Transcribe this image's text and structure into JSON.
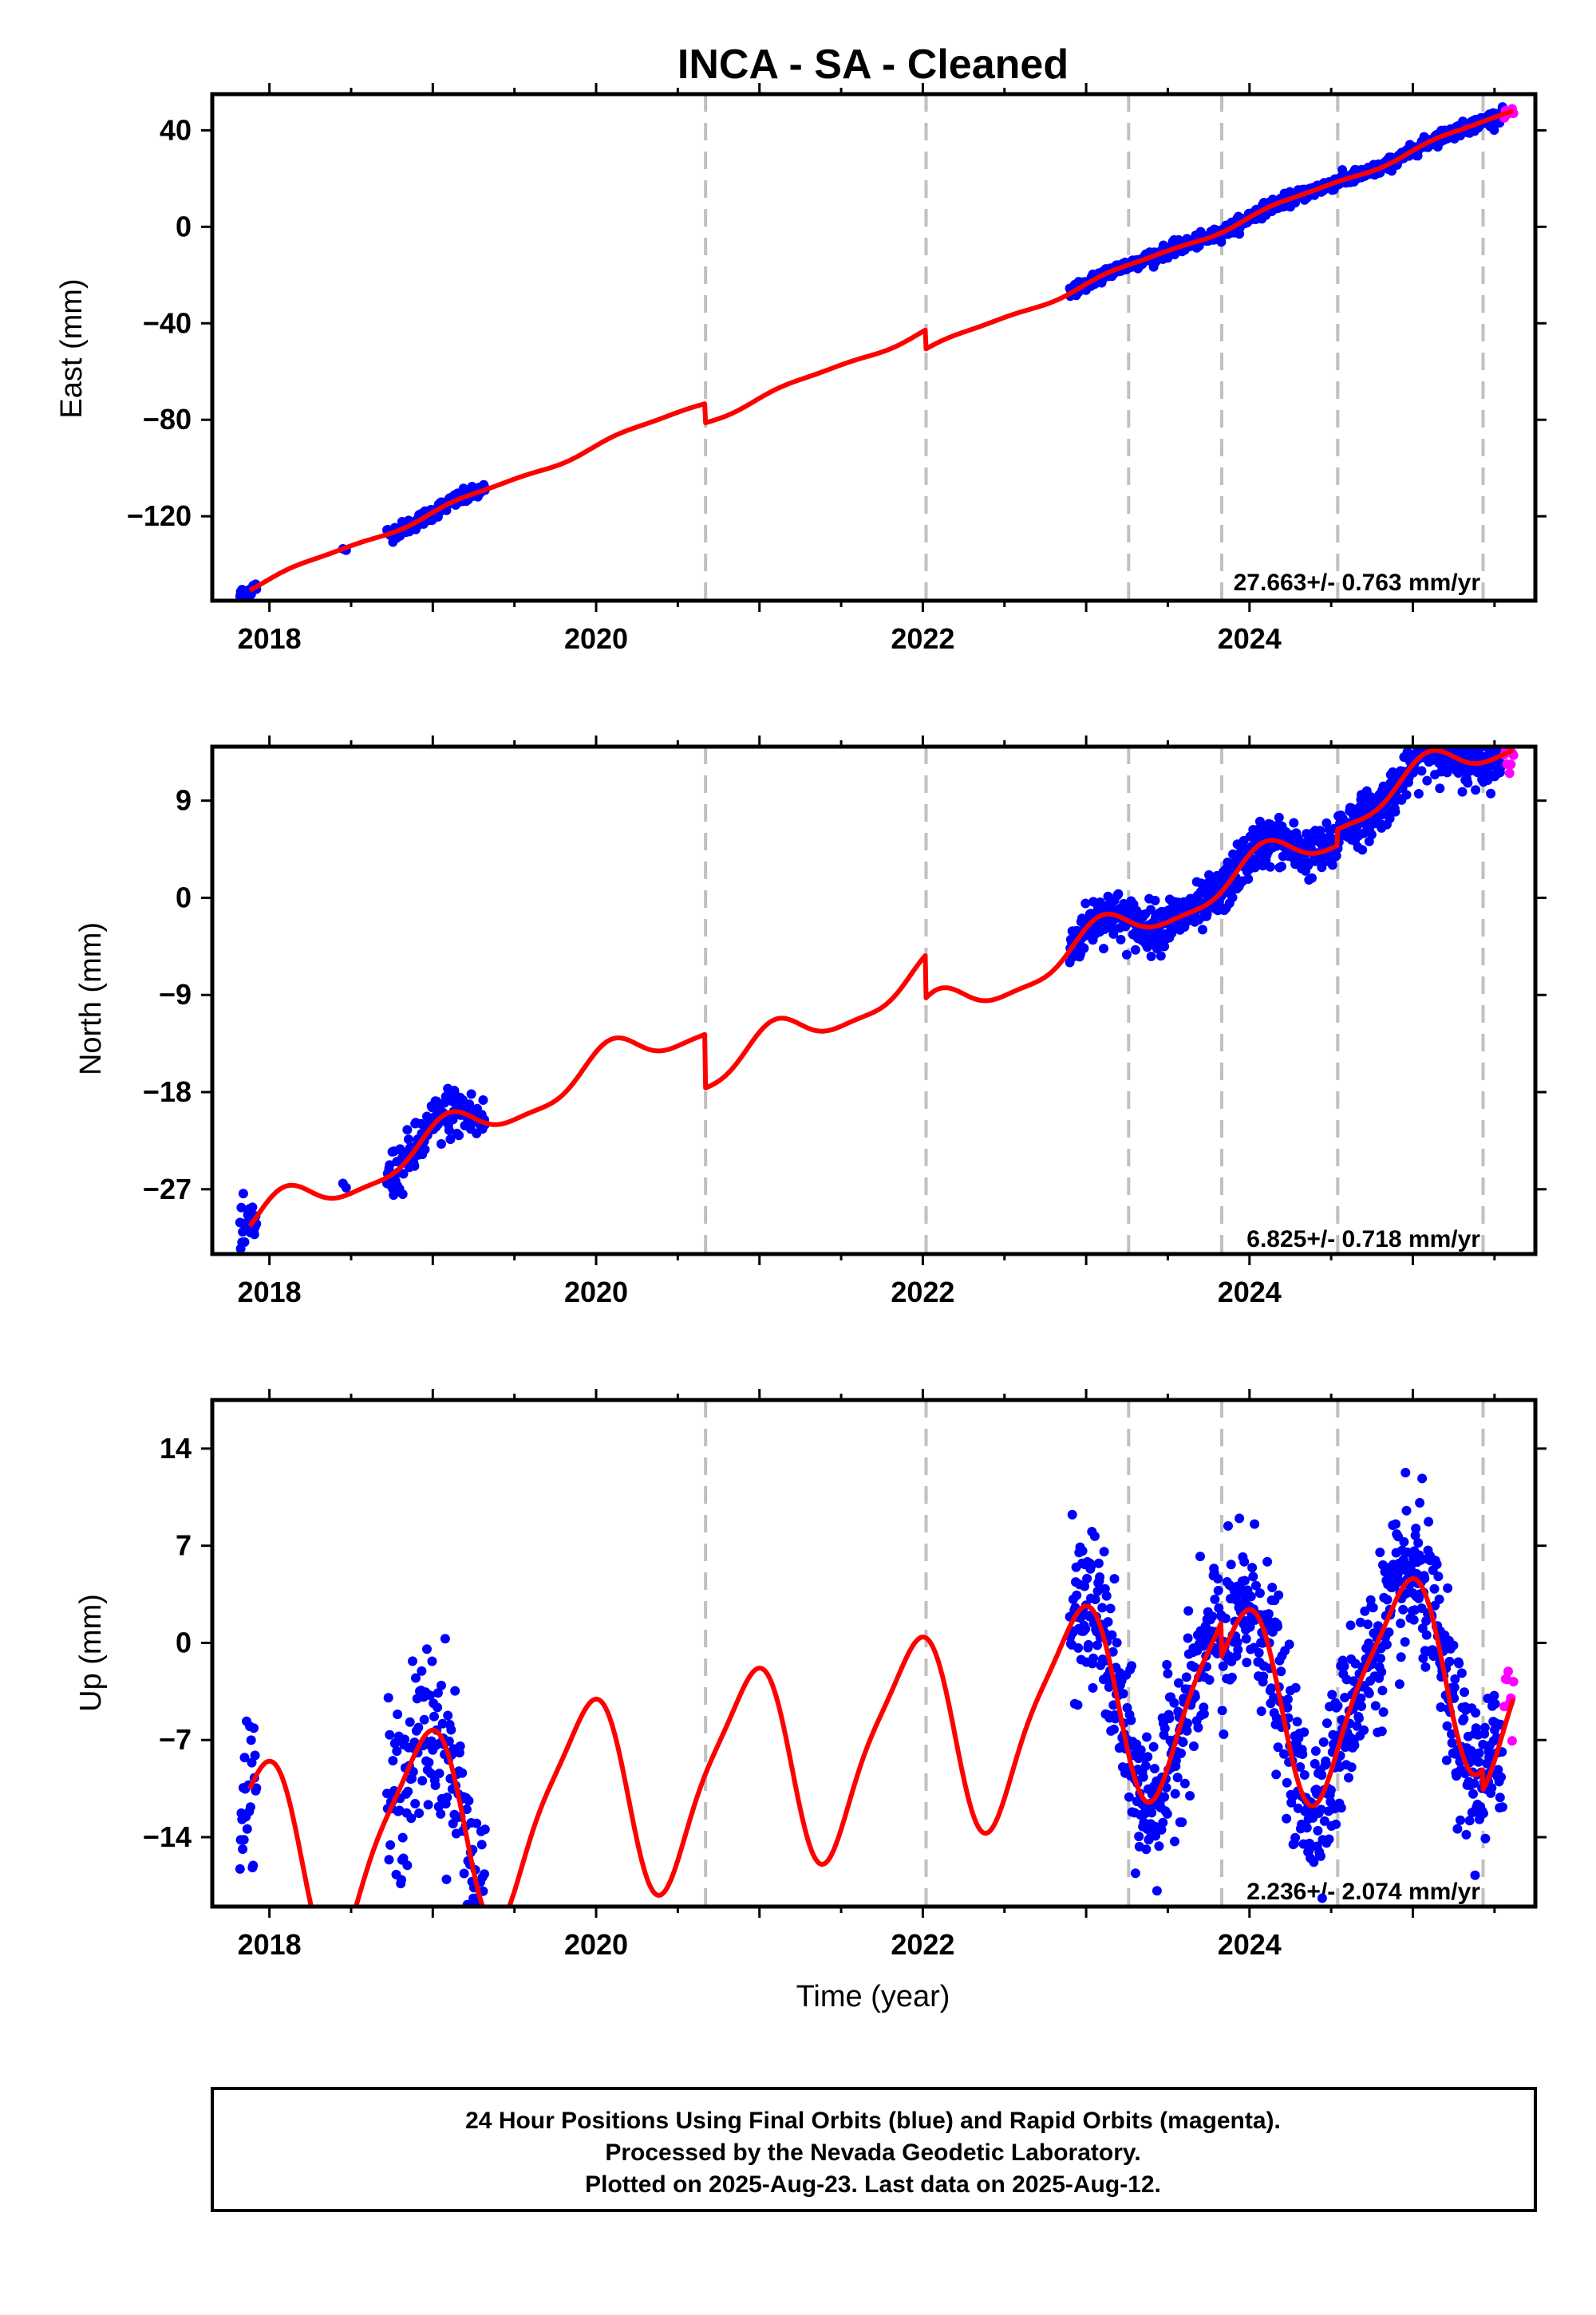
{
  "figure": {
    "title": "INCA  - SA - Cleaned",
    "xlabel": "Time (year)",
    "footer": [
      "24 Hour Positions Using Final Orbits (blue) and Rapid Orbits (magenta).",
      "Processed by the Nevada Geodetic Laboratory.",
      "Plotted on 2025-Aug-23. Last data on 2025-Aug-12."
    ],
    "colors": {
      "final_orbits": "#0000ff",
      "rapid_orbits": "#ff00ff",
      "model": "#ff0000",
      "steps": "#c0c0c0",
      "frame": "#000000"
    }
  },
  "chart_data": [
    {
      "type": "scatter",
      "name": "east",
      "ylabel": "East (mm)",
      "rate_text": "27.663+/- 0.763 mm/yr",
      "xlim": [
        2017.65,
        2025.75
      ],
      "ylim": [
        -155,
        55
      ],
      "x_ticks": [
        2018,
        2020,
        2022,
        2024
      ],
      "y_ticks": [
        -120,
        -80,
        -40,
        0,
        40
      ],
      "step_epochs": [
        2020.67,
        2022.02,
        2023.26,
        2023.83,
        2024.54,
        2025.43
      ],
      "model_steps": [
        {
          "epoch": 2020.67,
          "offset": -8
        },
        {
          "epoch": 2022.02,
          "offset": -8
        }
      ],
      "trend": {
        "rate": 27.663,
        "amp1": 1.2,
        "amp2": 0.4
      },
      "model_anchor": [
        2017.9,
        -150
      ],
      "data_segments": [
        {
          "start": 2017.82,
          "end": 2017.92,
          "density": 0.004,
          "noise": 1.4
        },
        {
          "start": 2018.45,
          "end": 2018.48,
          "density": 0.02,
          "noise": 1.0
        },
        {
          "start": 2018.72,
          "end": 2019.32,
          "density": 0.004,
          "noise": 1.5
        },
        {
          "start": 2022.9,
          "end": 2025.55,
          "density": 0.003,
          "noise": 1.3
        }
      ],
      "rapid_segment": {
        "start": 2025.56,
        "end": 2025.62,
        "noise": 1.0
      }
    },
    {
      "type": "scatter",
      "name": "north",
      "ylabel": "North (mm)",
      "rate_text": "6.825+/- 0.718 mm/yr",
      "xlim": [
        2017.65,
        2025.75
      ],
      "ylim": [
        -33,
        14
      ],
      "x_ticks": [
        2018,
        2020,
        2022,
        2024
      ],
      "y_ticks": [
        -27,
        -18,
        -9,
        0,
        9
      ],
      "step_epochs": [
        2020.67,
        2022.02,
        2023.26,
        2023.83,
        2024.54,
        2025.43
      ],
      "model_steps": [
        {
          "epoch": 2020.67,
          "offset": -5
        },
        {
          "epoch": 2022.02,
          "offset": -4
        },
        {
          "epoch": 2024.54,
          "offset": 1.5
        }
      ],
      "trend": {
        "rate": 6.825,
        "amp1": 1.7,
        "amp2": 0.5
      },
      "model_anchor": [
        2017.9,
        -30
      ],
      "data_segments": [
        {
          "start": 2017.82,
          "end": 2017.92,
          "density": 0.004,
          "noise": 1.2
        },
        {
          "start": 2018.45,
          "end": 2018.48,
          "density": 0.02,
          "noise": 0.8
        },
        {
          "start": 2018.72,
          "end": 2019.32,
          "density": 0.004,
          "noise": 1.2
        },
        {
          "start": 2022.9,
          "end": 2025.55,
          "density": 0.003,
          "noise": 1.1
        }
      ],
      "rapid_segment": {
        "start": 2025.56,
        "end": 2025.62,
        "noise": 0.7
      }
    },
    {
      "type": "scatter",
      "name": "up",
      "ylabel": "Up (mm)",
      "rate_text": "2.236+/- 2.074 mm/yr",
      "xlim": [
        2017.65,
        2025.75
      ],
      "ylim": [
        -19,
        17.5
      ],
      "x_ticks": [
        2018,
        2020,
        2022,
        2024
      ],
      "y_ticks": [
        -14,
        -7,
        0,
        7,
        14
      ],
      "step_epochs": [
        2020.67,
        2022.02,
        2023.26,
        2023.83,
        2024.54,
        2025.43
      ],
      "model_steps": [
        {
          "epoch": 2023.83,
          "offset": -2.5
        },
        {
          "epoch": 2025.43,
          "offset": -1.5
        }
      ],
      "trend": {
        "rate": 2.236,
        "amp1": 7.0,
        "amp2": 1.5
      },
      "model_anchor": [
        2017.9,
        -10
      ],
      "data_segments": [
        {
          "start": 2017.82,
          "end": 2017.92,
          "density": 0.004,
          "noise": 3.0
        },
        {
          "start": 2018.45,
          "end": 2018.48,
          "density": 0.02,
          "noise": 1.0
        },
        {
          "start": 2018.72,
          "end": 2019.32,
          "density": 0.004,
          "noise": 3.2
        },
        {
          "start": 2022.9,
          "end": 2025.55,
          "density": 0.003,
          "noise": 2.8
        }
      ],
      "rapid_segment": {
        "start": 2025.56,
        "end": 2025.62,
        "noise": 4.5
      }
    }
  ]
}
